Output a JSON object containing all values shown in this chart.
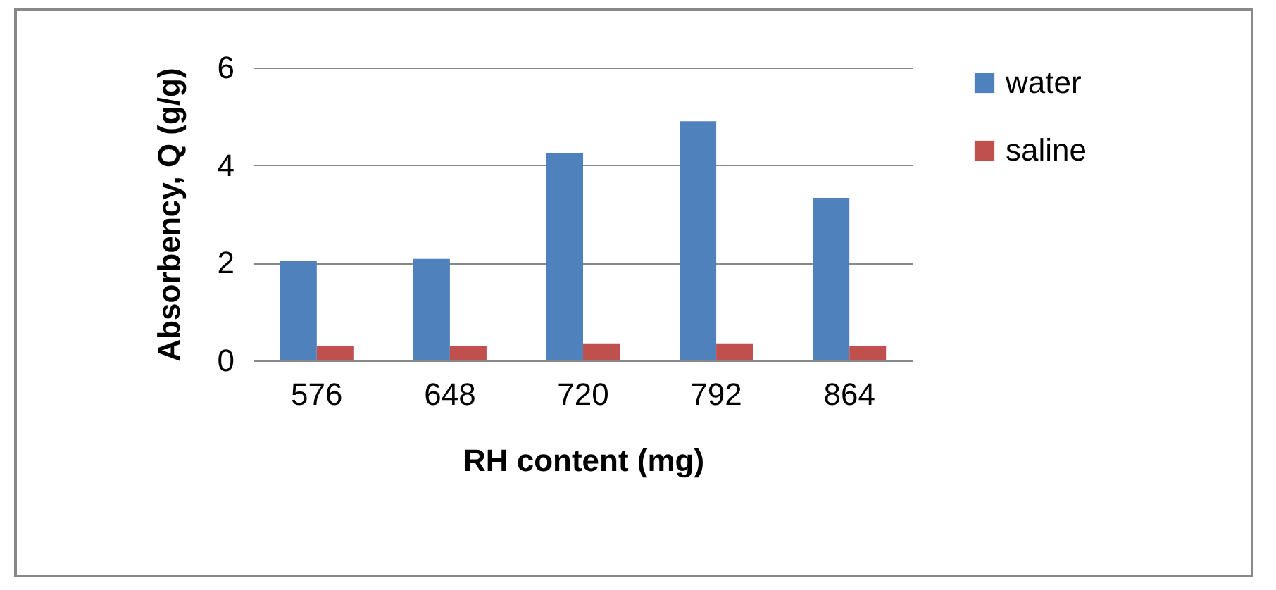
{
  "chart_data": {
    "type": "bar",
    "xlabel": "RH content (mg)",
    "ylabel": "Absorbency, Q (g/g)",
    "categories": [
      "576",
      "648",
      "720",
      "792",
      "864"
    ],
    "series": [
      {
        "name": "water",
        "color": "#4f81bd",
        "values": [
          2.04,
          2.08,
          4.25,
          4.9,
          3.33
        ]
      },
      {
        "name": "saline",
        "color": "#c0504d",
        "values": [
          0.3,
          0.3,
          0.35,
          0.35,
          0.3
        ]
      }
    ],
    "ylim": [
      0,
      6
    ],
    "yticks": [
      0,
      2,
      4,
      6
    ],
    "grid": "y",
    "legend": "right"
  }
}
